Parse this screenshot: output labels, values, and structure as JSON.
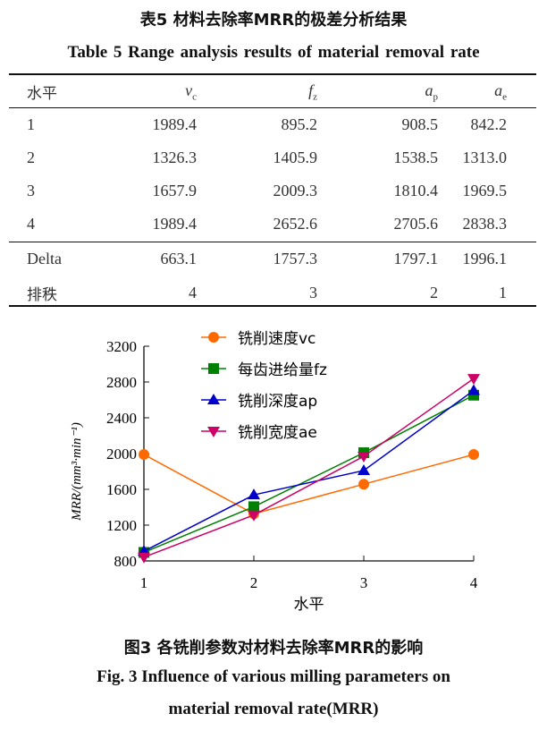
{
  "table": {
    "caption_cn": "表5 材料去除率MRR的极差分析结果",
    "caption_en": "Table 5    Range analysis results of material removal rate",
    "headers": [
      "水平",
      "v",
      "f",
      "a",
      "a"
    ],
    "header_subs": [
      "",
      "c",
      "z",
      "p",
      "e"
    ],
    "rows": [
      [
        "1",
        "1989.4",
        "895.2",
        "908.5",
        "842.2"
      ],
      [
        "2",
        "1326.3",
        "1405.9",
        "1538.5",
        "1313.0"
      ],
      [
        "3",
        "1657.9",
        "2009.3",
        "1810.4",
        "1969.5"
      ],
      [
        "4",
        "1989.4",
        "2652.6",
        "2705.6",
        "2838.3"
      ]
    ],
    "delta_row": [
      "Delta",
      "663.1",
      "1757.3",
      "1797.1",
      "1996.1"
    ],
    "rank_row": [
      "排秩",
      "4",
      "3",
      "2",
      "1"
    ]
  },
  "chart_data": {
    "type": "line",
    "x": [
      1,
      2,
      3,
      4
    ],
    "xlabel": "水平",
    "ylabel": "MRR/(mm³·min⁻¹)",
    "ylim": [
      800,
      3200
    ],
    "yticks": [
      800,
      1200,
      1600,
      2000,
      2400,
      2800,
      3200
    ],
    "xticks": [
      1,
      2,
      3,
      4
    ],
    "legend_position": "top-left",
    "series": [
      {
        "name": "铣削速度vc",
        "values": [
          1989.4,
          1326.3,
          1657.9,
          1989.4
        ],
        "color": "#ff6a00",
        "marker": "circle"
      },
      {
        "name": "每齿进给量fz",
        "values": [
          895.2,
          1405.9,
          2009.3,
          2652.6
        ],
        "color": "#008000",
        "marker": "square"
      },
      {
        "name": "铣削深度ap",
        "values": [
          908.5,
          1538.5,
          1810.4,
          2705.6
        ],
        "color": "#0000cc",
        "marker": "triangle-up"
      },
      {
        "name": "铣削宽度ae",
        "values": [
          842.2,
          1313.0,
          1969.5,
          2838.3
        ],
        "color": "#cc0066",
        "marker": "triangle-down"
      }
    ]
  },
  "figure": {
    "caption_cn": "图3 各铣削参数对材料去除率MRR的影响",
    "caption_en_1": "Fig. 3    Influence of various milling parameters on",
    "caption_en_2": "material removal rate(MRR)"
  }
}
